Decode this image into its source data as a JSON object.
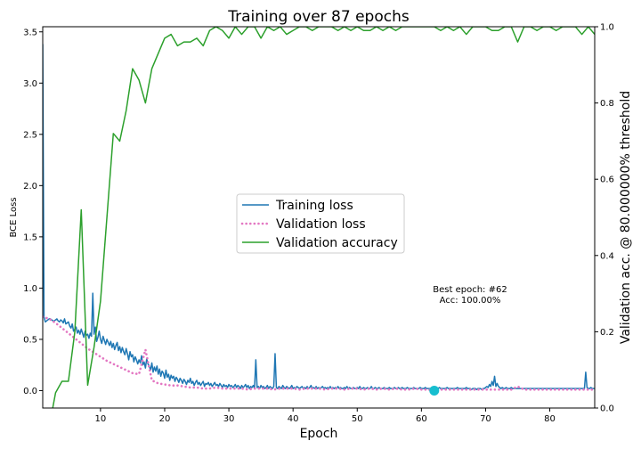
{
  "chart_data": {
    "type": "line",
    "title": "Training over 87 epochs",
    "xlabel": "Epoch",
    "ylabel_left": "BCE Loss",
    "ylabel_right": "Validation acc. @ 80.000000% threshold",
    "xlim": [
      1,
      87
    ],
    "ylim_left": [
      -0.17,
      3.55
    ],
    "ylim_right": [
      0,
      1
    ],
    "x_ticks": [
      10,
      20,
      30,
      40,
      50,
      60,
      70,
      80
    ],
    "y_ticks_left": [
      "0.0",
      "0.5",
      "1.0",
      "1.5",
      "2.0",
      "2.5",
      "3.0",
      "3.5"
    ],
    "y_ticks_right": [
      "0.0",
      "0.2",
      "0.4",
      "0.6",
      "0.8",
      "1.0"
    ],
    "grid": false,
    "legend_position": "center",
    "series": [
      {
        "name": "Training loss",
        "axis": "left",
        "color": "#1f77b4",
        "style": "solid",
        "x_start": 1,
        "x_step": 0.2,
        "values": [
          3.38,
          0.72,
          0.67,
          0.68,
          0.69,
          0.7,
          0.7,
          0.69,
          0.68,
          0.68,
          0.69,
          0.7,
          0.68,
          0.67,
          0.69,
          0.68,
          0.66,
          0.7,
          0.65,
          0.66,
          0.67,
          0.63,
          0.61,
          0.65,
          0.58,
          0.6,
          0.62,
          0.56,
          0.59,
          0.55,
          0.6,
          0.56,
          0.52,
          0.58,
          0.54,
          0.55,
          0.51,
          0.56,
          0.53,
          0.95,
          0.55,
          0.62,
          0.48,
          0.52,
          0.58,
          0.5,
          0.46,
          0.53,
          0.49,
          0.45,
          0.5,
          0.47,
          0.44,
          0.48,
          0.42,
          0.46,
          0.4,
          0.44,
          0.47,
          0.39,
          0.43,
          0.37,
          0.42,
          0.38,
          0.35,
          0.41,
          0.36,
          0.3,
          0.38,
          0.33,
          0.35,
          0.28,
          0.33,
          0.3,
          0.26,
          0.3,
          0.27,
          0.34,
          0.25,
          0.28,
          0.22,
          0.31,
          0.26,
          0.24,
          0.2,
          0.27,
          0.18,
          0.23,
          0.19,
          0.24,
          0.16,
          0.21,
          0.14,
          0.19,
          0.17,
          0.12,
          0.2,
          0.13,
          0.16,
          0.1,
          0.15,
          0.12,
          0.14,
          0.09,
          0.13,
          0.11,
          0.08,
          0.12,
          0.1,
          0.07,
          0.11,
          0.09,
          0.06,
          0.1,
          0.08,
          0.12,
          0.07,
          0.09,
          0.05,
          0.08,
          0.1,
          0.06,
          0.08,
          0.05,
          0.07,
          0.09,
          0.04,
          0.07,
          0.06,
          0.08,
          0.05,
          0.07,
          0.04,
          0.06,
          0.08,
          0.05,
          0.06,
          0.04,
          0.07,
          0.05,
          0.03,
          0.06,
          0.04,
          0.05,
          0.03,
          0.06,
          0.04,
          0.05,
          0.03,
          0.04,
          0.06,
          0.03,
          0.05,
          0.04,
          0.02,
          0.05,
          0.03,
          0.04,
          0.06,
          0.03,
          0.05,
          0.02,
          0.04,
          0.03,
          0.05,
          0.02,
          0.3,
          0.03,
          0.04,
          0.02,
          0.05,
          0.03,
          0.04,
          0.02,
          0.03,
          0.05,
          0.02,
          0.04,
          0.03,
          0.02,
          0.04,
          0.36,
          0.03,
          0.02,
          0.04,
          0.03,
          0.02,
          0.05,
          0.03,
          0.02,
          0.04,
          0.03,
          0.02,
          0.03,
          0.05,
          0.02,
          0.03,
          0.02,
          0.04,
          0.03,
          0.02,
          0.03,
          0.04,
          0.02,
          0.03,
          0.02,
          0.04,
          0.02,
          0.03,
          0.05,
          0.02,
          0.03,
          0.02,
          0.04,
          0.02,
          0.03,
          0.02,
          0.03,
          0.04,
          0.02,
          0.03,
          0.02,
          0.03,
          0.02,
          0.04,
          0.02,
          0.03,
          0.02,
          0.03,
          0.02,
          0.04,
          0.02,
          0.03,
          0.02,
          0.02,
          0.03,
          0.02,
          0.04,
          0.02,
          0.03,
          0.02,
          0.02,
          0.03,
          0.02,
          0.02,
          0.03,
          0.02,
          0.04,
          0.02,
          0.02,
          0.03,
          0.02,
          0.02,
          0.03,
          0.02,
          0.02,
          0.04,
          0.02,
          0.02,
          0.03,
          0.02,
          0.02,
          0.03,
          0.02,
          0.02,
          0.02,
          0.03,
          0.02,
          0.02,
          0.02,
          0.03,
          0.02,
          0.02,
          0.02,
          0.03,
          0.02,
          0.02,
          0.03,
          0.02,
          0.02,
          0.03,
          0.02,
          0.02,
          0.02,
          0.03,
          0.02,
          0.02,
          0.02,
          0.02,
          0.03,
          0.02,
          0.02,
          0.02,
          0.02,
          0.03,
          0.02,
          0.02,
          0.02,
          0.03,
          0.02,
          0.02,
          0.02,
          0.02,
          0.03,
          0.02,
          0.02,
          0.02,
          0.02,
          0.02,
          0.03,
          0.02,
          0.02,
          0.02,
          0.02,
          0.02,
          0.03,
          0.02,
          0.02,
          0.02,
          0.02,
          0.02,
          0.02,
          0.02,
          0.03,
          0.02,
          0.02,
          0.02,
          0.02,
          0.02,
          0.02,
          0.03,
          0.02,
          0.02,
          0.02,
          0.01,
          0.02,
          0.02,
          0.02,
          0.01,
          0.02,
          0.02,
          0.02,
          0.01,
          0.02,
          0.02,
          0.03,
          0.04,
          0.03,
          0.06,
          0.04,
          0.09,
          0.05,
          0.14,
          0.04,
          0.07,
          0.04,
          0.03,
          0.02,
          0.03,
          0.02,
          0.02,
          0.03,
          0.02,
          0.02,
          0.02,
          0.03,
          0.02,
          0.02,
          0.02,
          0.02,
          0.02,
          0.02,
          0.02,
          0.02,
          0.02,
          0.02,
          0.02,
          0.02,
          0.02,
          0.02,
          0.02,
          0.02,
          0.02,
          0.02,
          0.02,
          0.02,
          0.02,
          0.02,
          0.02,
          0.02,
          0.02,
          0.02,
          0.02,
          0.02,
          0.02,
          0.02,
          0.02,
          0.02,
          0.02,
          0.02,
          0.02,
          0.02,
          0.02,
          0.02,
          0.02,
          0.02,
          0.02,
          0.02,
          0.02,
          0.02,
          0.02,
          0.02,
          0.02,
          0.02,
          0.02,
          0.02,
          0.02,
          0.02,
          0.02,
          0.02,
          0.02,
          0.02,
          0.02,
          0.18,
          0.03,
          0.02,
          0.02,
          0.03,
          0.02,
          0.02,
          0.02,
          0.02,
          0.02,
          0.02,
          0.02,
          0.02,
          0.02,
          0.02,
          0.02,
          0.02,
          0.02,
          0.02,
          0.02,
          0.02,
          0.02,
          0.02,
          0.02,
          0.04,
          0.02
        ]
      },
      {
        "name": "Validation loss",
        "axis": "left",
        "color": "#e377c2",
        "style": "dotted",
        "x": [
          1,
          2,
          3,
          4,
          5,
          6,
          7,
          8,
          9,
          10,
          11,
          12,
          13,
          14,
          15,
          16,
          17,
          18,
          19,
          20,
          21,
          22,
          23,
          24,
          25,
          26,
          27,
          28,
          29,
          30,
          31,
          32,
          33,
          34,
          35,
          36,
          37,
          38,
          39,
          40,
          41,
          42,
          43,
          44,
          45,
          46,
          47,
          48,
          49,
          50,
          51,
          52,
          53,
          54,
          55,
          56,
          57,
          58,
          59,
          60,
          61,
          62,
          63,
          64,
          65,
          66,
          67,
          68,
          69,
          70,
          71,
          72,
          73,
          74,
          75,
          76,
          77,
          78,
          79,
          80,
          81,
          82,
          83,
          84,
          85,
          86,
          87
        ],
        "values": [
          0.72,
          0.7,
          0.66,
          0.61,
          0.56,
          0.51,
          0.46,
          0.41,
          0.37,
          0.33,
          0.29,
          0.26,
          0.23,
          0.2,
          0.17,
          0.16,
          0.4,
          0.1,
          0.07,
          0.06,
          0.05,
          0.05,
          0.04,
          0.03,
          0.03,
          0.02,
          0.02,
          0.03,
          0.02,
          0.02,
          0.02,
          0.02,
          0.01,
          0.02,
          0.02,
          0.02,
          0.01,
          0.02,
          0.02,
          0.02,
          0.01,
          0.02,
          0.02,
          0.02,
          0.01,
          0.02,
          0.02,
          0.01,
          0.02,
          0.02,
          0.01,
          0.02,
          0.01,
          0.02,
          0.01,
          0.02,
          0.01,
          0.01,
          0.02,
          0.01,
          0.01,
          0.0,
          0.01,
          0.01,
          0.01,
          0.01,
          0.01,
          0.01,
          0.01,
          0.01,
          0.01,
          0.01,
          0.01,
          0.01,
          0.04,
          0.01,
          0.01,
          0.01,
          0.01,
          0.01,
          0.01,
          0.01,
          0.01,
          0.01,
          0.01,
          0.01,
          0.01
        ]
      },
      {
        "name": "Validation accuracy",
        "axis": "right",
        "color": "#2ca02c",
        "style": "solid",
        "x": [
          1,
          2,
          3,
          4,
          5,
          6,
          7,
          8,
          9,
          10,
          11,
          12,
          13,
          14,
          15,
          16,
          17,
          18,
          19,
          20,
          21,
          22,
          23,
          24,
          25,
          26,
          27,
          28,
          29,
          30,
          31,
          32,
          33,
          34,
          35,
          36,
          37,
          38,
          39,
          40,
          41,
          42,
          43,
          44,
          45,
          46,
          47,
          48,
          49,
          50,
          51,
          52,
          53,
          54,
          55,
          56,
          57,
          58,
          59,
          60,
          61,
          62,
          63,
          64,
          65,
          66,
          67,
          68,
          69,
          70,
          71,
          72,
          73,
          74,
          75,
          76,
          77,
          78,
          79,
          80,
          81,
          82,
          83,
          84,
          85,
          86,
          87
        ],
        "values": [
          -0.1,
          -0.05,
          0.04,
          0.07,
          0.07,
          0.2,
          0.52,
          0.06,
          0.16,
          0.28,
          0.5,
          0.72,
          0.7,
          0.78,
          0.89,
          0.86,
          0.8,
          0.89,
          0.93,
          0.97,
          0.98,
          0.95,
          0.96,
          0.96,
          0.97,
          0.95,
          0.99,
          1.0,
          0.99,
          0.97,
          1.0,
          0.98,
          1.0,
          1.0,
          0.97,
          1.0,
          0.99,
          1.0,
          0.98,
          0.99,
          1.0,
          1.0,
          0.99,
          1.0,
          1.0,
          1.0,
          0.99,
          1.0,
          0.99,
          1.0,
          0.99,
          0.99,
          1.0,
          0.99,
          1.0,
          0.99,
          1.0,
          1.0,
          1.0,
          1.0,
          1.0,
          1.0,
          0.99,
          1.0,
          0.99,
          1.0,
          0.98,
          1.0,
          1.0,
          1.0,
          0.99,
          0.99,
          1.0,
          1.0,
          0.96,
          1.0,
          1.0,
          0.99,
          1.0,
          1.0,
          0.99,
          1.0,
          1.0,
          1.0,
          0.98,
          1.0,
          0.98
        ]
      }
    ],
    "best_marker": {
      "epoch": 62,
      "loss": 0.0,
      "color": "#17becf"
    },
    "annotation": [
      "Best epoch: #62",
      "Acc: 100.00%"
    ]
  }
}
